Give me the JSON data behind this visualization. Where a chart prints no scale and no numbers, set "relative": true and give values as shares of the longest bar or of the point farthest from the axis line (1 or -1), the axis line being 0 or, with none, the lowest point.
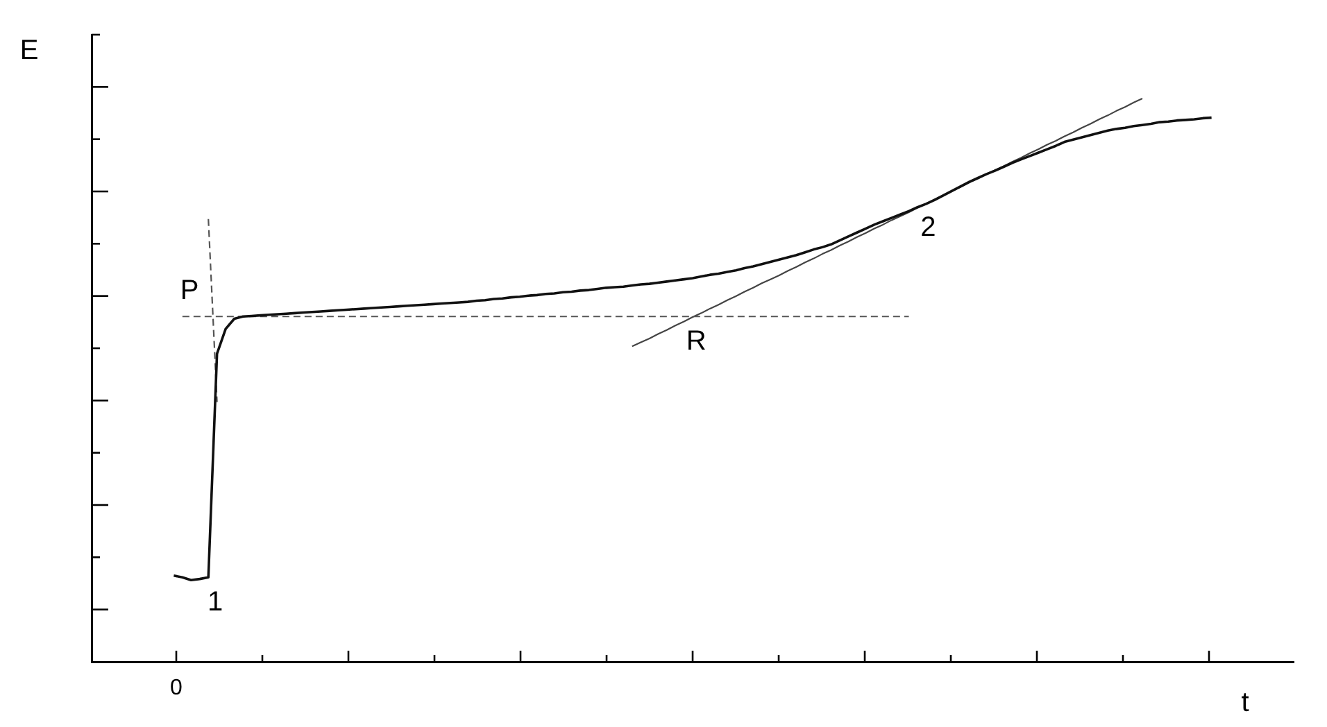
{
  "chart_data": {
    "type": "line",
    "xlabel": "t",
    "ylabel": "E",
    "relative": true,
    "marker": "none",
    "categories": [
      null,
      null,
      null,
      null,
      null,
      null,
      null,
      null,
      null,
      null,
      null,
      null,
      null,
      null,
      null,
      null,
      null,
      null,
      null,
      null,
      null,
      null,
      null,
      null,
      null,
      null,
      null,
      null,
      null,
      null,
      null,
      null,
      null,
      null,
      null,
      null,
      null,
      null,
      null,
      null,
      null,
      null,
      null,
      null,
      null,
      null,
      null,
      null,
      null,
      null,
      null,
      null,
      null,
      null,
      null,
      null,
      null,
      null,
      null,
      null,
      null,
      null,
      null,
      null,
      null,
      null,
      null,
      null,
      null,
      null,
      null,
      null,
      null,
      null,
      null,
      null,
      null,
      null,
      null,
      null,
      null,
      null,
      null,
      null,
      null,
      null,
      null,
      null,
      null,
      null,
      null,
      null,
      null,
      null,
      null,
      null,
      null,
      null,
      null,
      null,
      null,
      null,
      null,
      null,
      null,
      null,
      null,
      null,
      null,
      null,
      null,
      null,
      null,
      null,
      null,
      null,
      null,
      null,
      null,
      null,
      null,
      null,
      null,
      null,
      null,
      null,
      null,
      null,
      null,
      null,
      null,
      null,
      null,
      null,
      null,
      null,
      null,
      null,
      null
    ],
    "series": [
      {
        "color": "#111111",
        "values": [
          null,
          null,
          null,
          null,
          null,
          null,
          null,
          null,
          null,
          0.153,
          0.15,
          0.145,
          0.147,
          0.15,
          0.547,
          0.591,
          0.609,
          0.613,
          0.614,
          0.615,
          0.616,
          0.617,
          0.618,
          0.619,
          0.62,
          0.621,
          0.622,
          0.623,
          0.624,
          0.625,
          0.626,
          0.627,
          0.628,
          0.629,
          0.63,
          0.631,
          0.632,
          0.633,
          0.634,
          0.635,
          0.636,
          0.637,
          0.638,
          0.639,
          0.641,
          0.642,
          0.644,
          0.645,
          0.647,
          0.648,
          0.65,
          0.651,
          0.653,
          0.654,
          0.656,
          0.657,
          0.659,
          0.66,
          0.662,
          0.664,
          0.665,
          0.666,
          0.668,
          0.67,
          0.671,
          0.673,
          0.675,
          0.677,
          0.679,
          0.681,
          0.684,
          0.687,
          0.689,
          0.692,
          0.695,
          0.699,
          0.702,
          0.706,
          0.71,
          0.714,
          0.718,
          0.722,
          0.727,
          0.732,
          0.736,
          0.741,
          0.748,
          0.755,
          0.762,
          0.769,
          0.776,
          0.782,
          0.788,
          0.794,
          0.8,
          0.807,
          0.813,
          0.82,
          0.828,
          0.836,
          0.844,
          0.852,
          0.859,
          0.866,
          0.872,
          0.879,
          0.886,
          0.892,
          0.898,
          0.904,
          0.91,
          0.916,
          0.923,
          0.927,
          0.931,
          0.935,
          0.939,
          0.943,
          0.946,
          0.948,
          0.951,
          0.953,
          0.955,
          0.958,
          0.959,
          0.961,
          0.962,
          0.963,
          0.965,
          0.966,
          null,
          null,
          null,
          null,
          null,
          null,
          null,
          null,
          null
        ]
      },
      {
        "color": "#555555",
        "line_style": "dashed",
        "values": [
          null,
          null,
          null,
          null,
          null,
          null,
          null,
          null,
          null,
          null,
          0.613,
          0.613,
          0.613,
          0.613,
          0.613,
          0.613,
          0.613,
          0.613,
          0.613,
          0.613,
          0.613,
          0.613,
          0.613,
          0.613,
          0.613,
          0.613,
          0.613,
          0.613,
          0.613,
          0.613,
          0.613,
          0.613,
          0.613,
          0.613,
          0.613,
          0.613,
          0.613,
          0.613,
          0.613,
          0.613,
          0.613,
          0.613,
          0.613,
          0.613,
          0.613,
          0.613,
          0.613,
          0.613,
          0.613,
          0.613,
          0.613,
          0.613,
          0.613,
          0.613,
          0.613,
          0.613,
          0.613,
          0.613,
          0.613,
          0.613,
          0.613,
          0.613,
          0.613,
          0.613,
          0.613,
          0.613,
          0.613,
          0.613,
          0.613,
          0.613,
          0.613,
          0.613,
          0.613,
          0.613,
          0.613,
          0.613,
          0.613,
          0.613,
          0.613,
          0.613,
          0.613,
          0.613,
          0.613,
          0.613,
          0.613,
          0.613,
          0.613,
          0.613,
          0.613,
          0.613,
          0.613,
          0.613,
          0.613,
          0.613,
          0.613,
          null,
          null,
          null,
          null,
          null,
          null,
          null,
          null,
          null,
          null,
          null,
          null,
          null,
          null,
          null,
          null,
          null,
          null,
          null,
          null,
          null,
          null,
          null,
          null,
          null,
          null,
          null,
          null,
          null,
          null,
          null,
          null,
          null,
          null,
          null,
          null,
          null,
          null,
          null,
          null,
          null,
          null,
          null,
          null
        ]
      },
      {
        "color": "#555555",
        "line_style": "dashed",
        "values": [
          null,
          null,
          null,
          null,
          null,
          null,
          null,
          null,
          null,
          null,
          null,
          null,
          null,
          0.786,
          0.461,
          null,
          null,
          null,
          null,
          null,
          null,
          null,
          null,
          null,
          null,
          null,
          null,
          null,
          null,
          null,
          null,
          null,
          null,
          null,
          null,
          null,
          null,
          null,
          null,
          null,
          null,
          null,
          null,
          null,
          null,
          null,
          null,
          null,
          null,
          null,
          null,
          null,
          null,
          null,
          null,
          null,
          null,
          null,
          null,
          null,
          null,
          null,
          null,
          null,
          null,
          null,
          null,
          null,
          null,
          null,
          null,
          null,
          null,
          null,
          null,
          null,
          null,
          null,
          null,
          null,
          null,
          null,
          null,
          null,
          null,
          null,
          null,
          null,
          null,
          null,
          null,
          null,
          null,
          null,
          null,
          null,
          null,
          null,
          null,
          null,
          null,
          null,
          null,
          null,
          null,
          null,
          null,
          null,
          null,
          null,
          null,
          null,
          null,
          null,
          null,
          null,
          null,
          null,
          null,
          null,
          null,
          null,
          null,
          null,
          null,
          null,
          null,
          null,
          null,
          null,
          null,
          null,
          null,
          null,
          null,
          null,
          null,
          null,
          null
        ]
      },
      {
        "color": "#444444",
        "values": [
          null,
          null,
          null,
          null,
          null,
          null,
          null,
          null,
          null,
          null,
          null,
          null,
          null,
          null,
          null,
          null,
          null,
          null,
          null,
          null,
          null,
          null,
          null,
          null,
          null,
          null,
          null,
          null,
          null,
          null,
          null,
          null,
          null,
          null,
          null,
          null,
          null,
          null,
          null,
          null,
          null,
          null,
          null,
          null,
          null,
          null,
          null,
          null,
          null,
          null,
          null,
          null,
          null,
          null,
          null,
          null,
          null,
          null,
          null,
          null,
          null,
          null,
          0.56,
          0.567,
          0.574,
          0.582,
          0.589,
          0.597,
          0.604,
          0.612,
          0.619,
          0.627,
          0.634,
          0.642,
          0.649,
          0.657,
          0.664,
          0.672,
          0.679,
          0.686,
          0.694,
          0.701,
          0.709,
          0.716,
          0.724,
          0.731,
          0.739,
          0.746,
          0.754,
          0.761,
          0.769,
          0.776,
          0.784,
          0.791,
          0.798,
          0.806,
          0.813,
          0.821,
          0.828,
          0.836,
          0.843,
          0.851,
          0.858,
          0.866,
          0.873,
          0.88,
          0.888,
          0.895,
          0.903,
          0.91,
          0.918,
          0.925,
          0.933,
          0.94,
          0.948,
          0.955,
          0.963,
          0.97,
          0.978,
          0.985,
          0.993,
          1,
          null,
          null,
          null,
          null,
          null,
          null,
          null,
          null,
          null,
          null,
          null,
          null,
          null,
          null,
          null,
          null,
          null
        ]
      }
    ],
    "annotations": [
      "0",
      "1",
      "P",
      "R",
      "2"
    ]
  }
}
